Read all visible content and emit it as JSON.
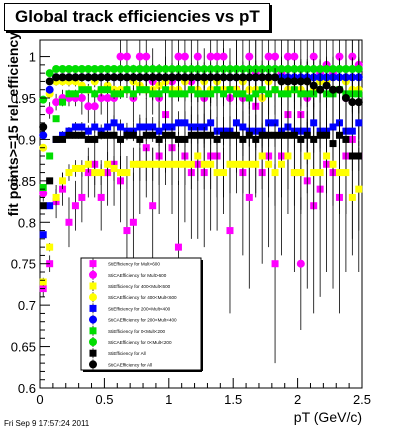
{
  "header": {
    "title": "Global track efficiencies vs pT"
  },
  "footer": {
    "timestamp": "Fri Sep  9 17:57:24 2011"
  },
  "chart_data": {
    "type": "scatter",
    "title": "Global track efficiencies vs pT",
    "xlabel": "pT (GeV/c)",
    "ylabel": "fit points>=15 rel. efficiency",
    "xlim": [
      0,
      2.5
    ],
    "ylim": [
      0.6,
      1.02
    ],
    "xticks": [
      "0",
      "0.5",
      "1",
      "1.5",
      "2",
      "2.5"
    ],
    "yticks": [
      "0.6",
      "0.65",
      "0.7",
      "0.75",
      "0.8",
      "0.85",
      "0.9",
      "0.95",
      "1"
    ],
    "grid": false,
    "legend_position": "lower-left inside plot",
    "x": [
      0.025,
      0.075,
      0.125,
      0.175,
      0.225,
      0.275,
      0.325,
      0.375,
      0.425,
      0.475,
      0.525,
      0.575,
      0.625,
      0.675,
      0.725,
      0.775,
      0.825,
      0.875,
      0.925,
      0.975,
      1.025,
      1.075,
      1.125,
      1.175,
      1.225,
      1.275,
      1.325,
      1.375,
      1.425,
      1.475,
      1.525,
      1.575,
      1.625,
      1.675,
      1.725,
      1.775,
      1.825,
      1.875,
      1.925,
      1.975,
      2.025,
      2.075,
      2.125,
      2.175,
      2.225,
      2.275,
      2.325,
      2.375,
      2.425,
      2.475
    ],
    "series": [
      {
        "name": "StiEfficiency  for Mult>600",
        "color": "#ff00ff",
        "marker": "square",
        "y": [
          0.72,
          0.75,
          0.825,
          0.84,
          0.8,
          0.82,
          0.83,
          0.86,
          0.87,
          0.83,
          0.86,
          0.87,
          0.85,
          0.79,
          0.8,
          0.87,
          0.89,
          0.82,
          0.88,
          0.93,
          0.89,
          0.77,
          0.88,
          0.86,
          0.87,
          0.86,
          0.88,
          0.88,
          0.91,
          0.79,
          0.96,
          0.86,
          0.83,
          0.94,
          0.86,
          0.88,
          0.75,
          0.88,
          0.93,
          0.86,
          0.93,
          0.85,
          0.82,
          0.84,
          0.87,
          0.86,
          0.83,
          0.88,
          0.9,
          0.88
        ],
        "err": [
          0.01,
          0.01,
          0.02,
          0.02,
          0.03,
          0.03,
          0.03,
          0.03,
          0.04,
          0.04,
          0.04,
          0.05,
          0.05,
          0.05,
          0.06,
          0.06,
          0.06,
          0.07,
          0.07,
          0.07,
          0.08,
          0.08,
          0.08,
          0.08,
          0.09,
          0.09,
          0.09,
          0.09,
          0.1,
          0.1,
          0.1,
          0.1,
          0.11,
          0.11,
          0.11,
          0.11,
          0.12,
          0.12,
          0.12,
          0.12,
          0.12,
          0.13,
          0.13,
          0.13,
          0.13,
          0.14,
          0.14,
          0.14,
          0.14,
          0.14
        ]
      },
      {
        "name": "StiCAEfficiency  for Mult>600",
        "color": "#ff00ff",
        "marker": "circle",
        "y": [
          0.835,
          0.935,
          0.945,
          0.95,
          0.95,
          0.95,
          0.95,
          0.94,
          0.94,
          0.95,
          0.95,
          0.95,
          1.0,
          1.0,
          0.95,
          1.0,
          1.0,
          0.97,
          0.95,
          0.97,
          0.97,
          1.0,
          1.0,
          0.97,
          1.0,
          0.95,
          1.0,
          1.0,
          1.0,
          0.95,
          0.96,
          0.95,
          1.0,
          0.98,
          0.95,
          1.0,
          1.0,
          0.98,
          1.0,
          1.0,
          0.75,
          0.95,
          1.0,
          0.98,
          0.99,
          0.98,
          1.0,
          0.95,
          1.0,
          0.99
        ],
        "err": [
          0.01,
          0.01,
          0.01,
          0.01,
          0.01,
          0.01,
          0.02,
          0.02,
          0.02,
          0.02,
          0.03,
          0.03,
          0.03,
          0.03,
          0.03,
          0.04,
          0.04,
          0.04,
          0.04,
          0.05,
          0.05,
          0.05,
          0.05,
          0.05,
          0.05,
          0.06,
          0.06,
          0.06,
          0.06,
          0.06,
          0.06,
          0.07,
          0.07,
          0.07,
          0.07,
          0.07,
          0.07,
          0.08,
          0.08,
          0.08,
          0.08,
          0.08,
          0.08,
          0.09,
          0.09,
          0.09,
          0.09,
          0.09,
          0.09,
          0.09
        ]
      },
      {
        "name": "StiEfficiency  for 400<Mult<600",
        "color": "#ffff00",
        "marker": "square",
        "y": [
          0.728,
          0.77,
          0.83,
          0.85,
          0.86,
          0.865,
          0.865,
          0.87,
          0.86,
          0.86,
          0.87,
          0.865,
          0.86,
          0.86,
          0.87,
          0.87,
          0.87,
          0.87,
          0.87,
          0.87,
          0.87,
          0.87,
          0.87,
          0.87,
          0.88,
          0.87,
          0.87,
          0.86,
          0.86,
          0.87,
          0.87,
          0.87,
          0.87,
          0.87,
          0.88,
          0.87,
          0.86,
          0.87,
          0.88,
          0.86,
          0.86,
          0.88,
          0.86,
          0.86,
          0.88,
          0.87,
          0.86,
          0.86,
          0.83,
          0.84
        ],
        "err": [
          0.005,
          0.005,
          0.01,
          0.01,
          0.01,
          0.01,
          0.01,
          0.01,
          0.015,
          0.015,
          0.015,
          0.015,
          0.02,
          0.02,
          0.02,
          0.02,
          0.02,
          0.02,
          0.025,
          0.025,
          0.025,
          0.025,
          0.025,
          0.03,
          0.03,
          0.03,
          0.03,
          0.03,
          0.03,
          0.035,
          0.035,
          0.035,
          0.035,
          0.035,
          0.04,
          0.04,
          0.04,
          0.04,
          0.04,
          0.04,
          0.045,
          0.045,
          0.045,
          0.045,
          0.045,
          0.05,
          0.05,
          0.05,
          0.05,
          0.05
        ]
      },
      {
        "name": "StiCAEfficiency  for 400<Mult<600",
        "color": "#ffff00",
        "marker": "circle",
        "y": [
          0.89,
          0.955,
          0.97,
          0.97,
          0.97,
          0.97,
          0.965,
          0.96,
          0.97,
          0.96,
          0.965,
          0.96,
          0.96,
          0.96,
          0.97,
          0.965,
          0.96,
          0.96,
          0.965,
          0.97,
          0.96,
          0.96,
          0.97,
          0.96,
          0.96,
          0.97,
          0.96,
          0.97,
          0.96,
          0.96,
          0.96,
          0.97,
          0.96,
          0.96,
          0.95,
          0.97,
          0.96,
          0.97,
          0.96,
          0.96,
          0.96,
          0.97,
          0.96,
          0.97,
          0.97,
          0.96,
          0.96,
          0.97,
          0.96,
          0.96
        ],
        "err": [
          0.004,
          0.004,
          0.005,
          0.005,
          0.006,
          0.006,
          0.006,
          0.007,
          0.007,
          0.008,
          0.008,
          0.009,
          0.009,
          0.01,
          0.01,
          0.011,
          0.011,
          0.012,
          0.012,
          0.013,
          0.013,
          0.014,
          0.014,
          0.015,
          0.015,
          0.016,
          0.016,
          0.017,
          0.017,
          0.018,
          0.018,
          0.019,
          0.019,
          0.02,
          0.02,
          0.021,
          0.021,
          0.022,
          0.022,
          0.023,
          0.023,
          0.024,
          0.024,
          0.025,
          0.025,
          0.026,
          0.026,
          0.027,
          0.027,
          0.028
        ]
      },
      {
        "name": "StiEfficiency  for 200<Mult<400",
        "color": "#0000ff",
        "marker": "square",
        "y": [
          0.785,
          0.82,
          0.9,
          0.905,
          0.91,
          0.915,
          0.915,
          0.91,
          0.915,
          0.91,
          0.915,
          0.92,
          0.915,
          0.91,
          0.91,
          0.915,
          0.915,
          0.915,
          0.91,
          0.915,
          0.915,
          0.92,
          0.92,
          0.915,
          0.915,
          0.915,
          0.92,
          0.91,
          0.91,
          0.91,
          0.92,
          0.915,
          0.91,
          0.91,
          0.91,
          0.92,
          0.92,
          0.91,
          0.915,
          0.91,
          0.91,
          0.91,
          0.92,
          0.91,
          0.91,
          0.915,
          0.92,
          0.91,
          0.91,
          0.92
        ],
        "err": [
          0.003,
          0.004,
          0.004,
          0.005,
          0.005,
          0.006,
          0.006,
          0.007,
          0.007,
          0.008,
          0.008,
          0.009,
          0.009,
          0.01,
          0.01,
          0.011,
          0.011,
          0.012,
          0.012,
          0.013,
          0.013,
          0.014,
          0.014,
          0.015,
          0.015,
          0.016,
          0.016,
          0.017,
          0.017,
          0.018,
          0.018,
          0.019,
          0.019,
          0.02,
          0.02,
          0.021,
          0.021,
          0.022,
          0.022,
          0.023,
          0.023,
          0.024,
          0.024,
          0.025,
          0.025,
          0.026,
          0.026,
          0.027,
          0.027,
          0.028
        ]
      },
      {
        "name": "StiCAEfficiency  for 200<Mult<400",
        "color": "#0000ff",
        "marker": "circle",
        "y": [
          0.905,
          0.96,
          0.975,
          0.975,
          0.975,
          0.975,
          0.975,
          0.975,
          0.975,
          0.975,
          0.975,
          0.975,
          0.975,
          0.975,
          0.975,
          0.975,
          0.975,
          0.975,
          0.975,
          0.975,
          0.975,
          0.975,
          0.975,
          0.975,
          0.975,
          0.975,
          0.975,
          0.975,
          0.975,
          0.975,
          0.975,
          0.975,
          0.975,
          0.975,
          0.975,
          0.975,
          0.975,
          0.975,
          0.975,
          0.975,
          0.975,
          0.975,
          0.975,
          0.975,
          0.975,
          0.975,
          0.975,
          0.975,
          0.975,
          0.975
        ],
        "err": [
          0.003,
          0.003,
          0.003,
          0.004,
          0.004,
          0.005,
          0.005,
          0.005,
          0.006,
          0.006,
          0.007,
          0.007,
          0.007,
          0.008,
          0.008,
          0.009,
          0.009,
          0.009,
          0.01,
          0.01,
          0.011,
          0.011,
          0.011,
          0.012,
          0.012,
          0.013,
          0.013,
          0.013,
          0.014,
          0.014,
          0.015,
          0.015,
          0.015,
          0.016,
          0.016,
          0.017,
          0.017,
          0.017,
          0.018,
          0.018,
          0.019,
          0.019,
          0.019,
          0.02,
          0.02,
          0.021,
          0.021,
          0.021,
          0.022,
          0.022
        ]
      },
      {
        "name": "StiEfficiency  for 0<Mult<200",
        "color": "#00dd00",
        "marker": "square",
        "y": [
          0.842,
          0.88,
          0.925,
          0.945,
          0.955,
          0.955,
          0.96,
          0.96,
          0.955,
          0.96,
          0.96,
          0.955,
          0.955,
          0.96,
          0.955,
          0.96,
          0.96,
          0.955,
          0.955,
          0.96,
          0.955,
          0.955,
          0.955,
          0.96,
          0.955,
          0.955,
          0.955,
          0.96,
          0.955,
          0.96,
          0.955,
          0.955,
          0.95,
          0.955,
          0.96,
          0.955,
          0.96,
          0.955,
          0.955,
          0.96,
          0.955,
          0.955,
          0.955,
          0.96,
          0.955,
          0.955,
          0.96,
          0.955,
          0.955,
          0.955
        ],
        "err": [
          0.002,
          0.002,
          0.003,
          0.003,
          0.003,
          0.004,
          0.004,
          0.004,
          0.005,
          0.005,
          0.005,
          0.006,
          0.006,
          0.006,
          0.007,
          0.007,
          0.007,
          0.008,
          0.008,
          0.008,
          0.009,
          0.009,
          0.009,
          0.01,
          0.01,
          0.01,
          0.011,
          0.011,
          0.011,
          0.012,
          0.012,
          0.012,
          0.013,
          0.013,
          0.013,
          0.014,
          0.014,
          0.014,
          0.015,
          0.015,
          0.015,
          0.016,
          0.016,
          0.016,
          0.017,
          0.017,
          0.017,
          0.018,
          0.018,
          0.018
        ]
      },
      {
        "name": "StiCAEfficiency  for 0<Mult<200",
        "color": "#00dd00",
        "marker": "circle",
        "y": [
          0.948,
          0.98,
          0.985,
          0.985,
          0.985,
          0.985,
          0.985,
          0.985,
          0.985,
          0.985,
          0.985,
          0.985,
          0.985,
          0.985,
          0.985,
          0.985,
          0.985,
          0.985,
          0.985,
          0.985,
          0.985,
          0.985,
          0.985,
          0.985,
          0.985,
          0.985,
          0.985,
          0.985,
          0.985,
          0.985,
          0.985,
          0.985,
          0.985,
          0.985,
          0.985,
          0.985,
          0.985,
          0.985,
          0.985,
          0.985,
          0.985,
          0.985,
          0.985,
          0.985,
          0.985,
          0.985,
          0.985,
          0.985,
          0.985,
          0.985
        ],
        "err": [
          0.002,
          0.002,
          0.002,
          0.002,
          0.003,
          0.003,
          0.003,
          0.003,
          0.004,
          0.004,
          0.004,
          0.004,
          0.005,
          0.005,
          0.005,
          0.005,
          0.006,
          0.006,
          0.006,
          0.006,
          0.007,
          0.007,
          0.007,
          0.007,
          0.008,
          0.008,
          0.008,
          0.008,
          0.009,
          0.009,
          0.009,
          0.009,
          0.01,
          0.01,
          0.01,
          0.01,
          0.011,
          0.011,
          0.011,
          0.011,
          0.012,
          0.012,
          0.012,
          0.012,
          0.013,
          0.013,
          0.013,
          0.013,
          0.014,
          0.014
        ]
      },
      {
        "name": "StiEfficiency  for All",
        "color": "#000000",
        "marker": "square",
        "y": [
          0.82,
          0.85,
          0.9,
          0.9,
          0.905,
          0.905,
          0.905,
          0.9,
          0.9,
          0.905,
          0.905,
          0.905,
          0.9,
          0.905,
          0.905,
          0.9,
          0.905,
          0.905,
          0.9,
          0.905,
          0.905,
          0.9,
          0.9,
          0.905,
          0.905,
          0.905,
          0.905,
          0.9,
          0.905,
          0.905,
          0.905,
          0.9,
          0.905,
          0.9,
          0.905,
          0.905,
          0.905,
          0.905,
          0.905,
          0.905,
          0.9,
          0.905,
          0.9,
          0.905,
          0.905,
          0.895,
          0.905,
          0.9,
          0.88,
          0.88
        ],
        "err": [
          0.002,
          0.002,
          0.003,
          0.003,
          0.003,
          0.004,
          0.004,
          0.004,
          0.005,
          0.005,
          0.005,
          0.006,
          0.006,
          0.006,
          0.007,
          0.007,
          0.007,
          0.008,
          0.008,
          0.008,
          0.009,
          0.009,
          0.009,
          0.01,
          0.01,
          0.01,
          0.011,
          0.011,
          0.011,
          0.012,
          0.012,
          0.012,
          0.013,
          0.013,
          0.013,
          0.014,
          0.014,
          0.014,
          0.015,
          0.015,
          0.015,
          0.016,
          0.016,
          0.016,
          0.017,
          0.017,
          0.017,
          0.018,
          0.018,
          0.018
        ]
      },
      {
        "name": "StiCAEfficiency  for All",
        "color": "#000000",
        "marker": "circle",
        "y": [
          0.915,
          0.97,
          0.975,
          0.975,
          0.975,
          0.975,
          0.975,
          0.975,
          0.975,
          0.975,
          0.975,
          0.975,
          0.975,
          0.975,
          0.975,
          0.975,
          0.975,
          0.975,
          0.975,
          0.975,
          0.975,
          0.975,
          0.975,
          0.975,
          0.975,
          0.975,
          0.975,
          0.975,
          0.975,
          0.975,
          0.975,
          0.975,
          0.975,
          0.975,
          0.975,
          0.975,
          0.975,
          0.97,
          0.97,
          0.97,
          0.97,
          0.97,
          0.965,
          0.96,
          0.965,
          0.96,
          0.96,
          0.95,
          0.945,
          0.945
        ],
        "err": [
          0.002,
          0.002,
          0.002,
          0.002,
          0.003,
          0.003,
          0.003,
          0.003,
          0.004,
          0.004,
          0.004,
          0.004,
          0.005,
          0.005,
          0.005,
          0.005,
          0.006,
          0.006,
          0.006,
          0.006,
          0.007,
          0.007,
          0.007,
          0.007,
          0.008,
          0.008,
          0.008,
          0.008,
          0.009,
          0.009,
          0.009,
          0.009,
          0.01,
          0.01,
          0.01,
          0.01,
          0.011,
          0.011,
          0.011,
          0.011,
          0.012,
          0.012,
          0.012,
          0.012,
          0.013,
          0.013,
          0.013,
          0.013,
          0.014,
          0.014
        ]
      }
    ]
  }
}
